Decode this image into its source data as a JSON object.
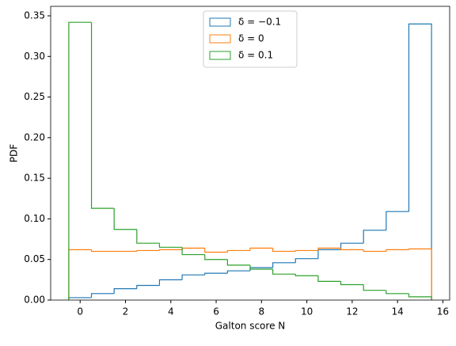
{
  "chart_data": {
    "type": "histogram",
    "xlabel": "Galton score N",
    "ylabel": "PDF",
    "bins": [
      -0.5,
      0.5,
      1.5,
      2.5,
      3.5,
      4.5,
      5.5,
      6.5,
      7.5,
      8.5,
      9.5,
      10.5,
      11.5,
      12.5,
      13.5,
      14.5,
      15.5
    ],
    "series": [
      {
        "name": "δ = −0.1",
        "color": "#1f77b4",
        "values": [
          0.003,
          0.008,
          0.014,
          0.018,
          0.025,
          0.031,
          0.033,
          0.036,
          0.04,
          0.046,
          0.051,
          0.062,
          0.07,
          0.086,
          0.109,
          0.34
        ]
      },
      {
        "name": "δ = 0",
        "color": "#ff7f0e",
        "values": [
          0.062,
          0.06,
          0.06,
          0.061,
          0.062,
          0.064,
          0.059,
          0.061,
          0.064,
          0.06,
          0.061,
          0.064,
          0.062,
          0.06,
          0.062,
          0.063
        ]
      },
      {
        "name": "δ = 0.1",
        "color": "#2ca02c",
        "values": [
          0.342,
          0.113,
          0.087,
          0.07,
          0.065,
          0.056,
          0.05,
          0.043,
          0.038,
          0.032,
          0.03,
          0.023,
          0.019,
          0.012,
          0.008,
          0.004
        ]
      }
    ],
    "xlim": [
      -1.3,
      16.3
    ],
    "ylim": [
      0,
      0.3617
    ],
    "xticks": [
      0,
      2,
      4,
      6,
      8,
      10,
      12,
      14,
      16
    ],
    "yticks": [
      {
        "value": 0,
        "label": "0.00"
      },
      0.05,
      {
        "value": 0.1,
        "label": "0.10"
      },
      0.15,
      {
        "value": 0.2,
        "label": "0.20"
      },
      0.25,
      {
        "value": 0.3,
        "label": "0.30"
      },
      0.35
    ],
    "legend": "upper center"
  }
}
